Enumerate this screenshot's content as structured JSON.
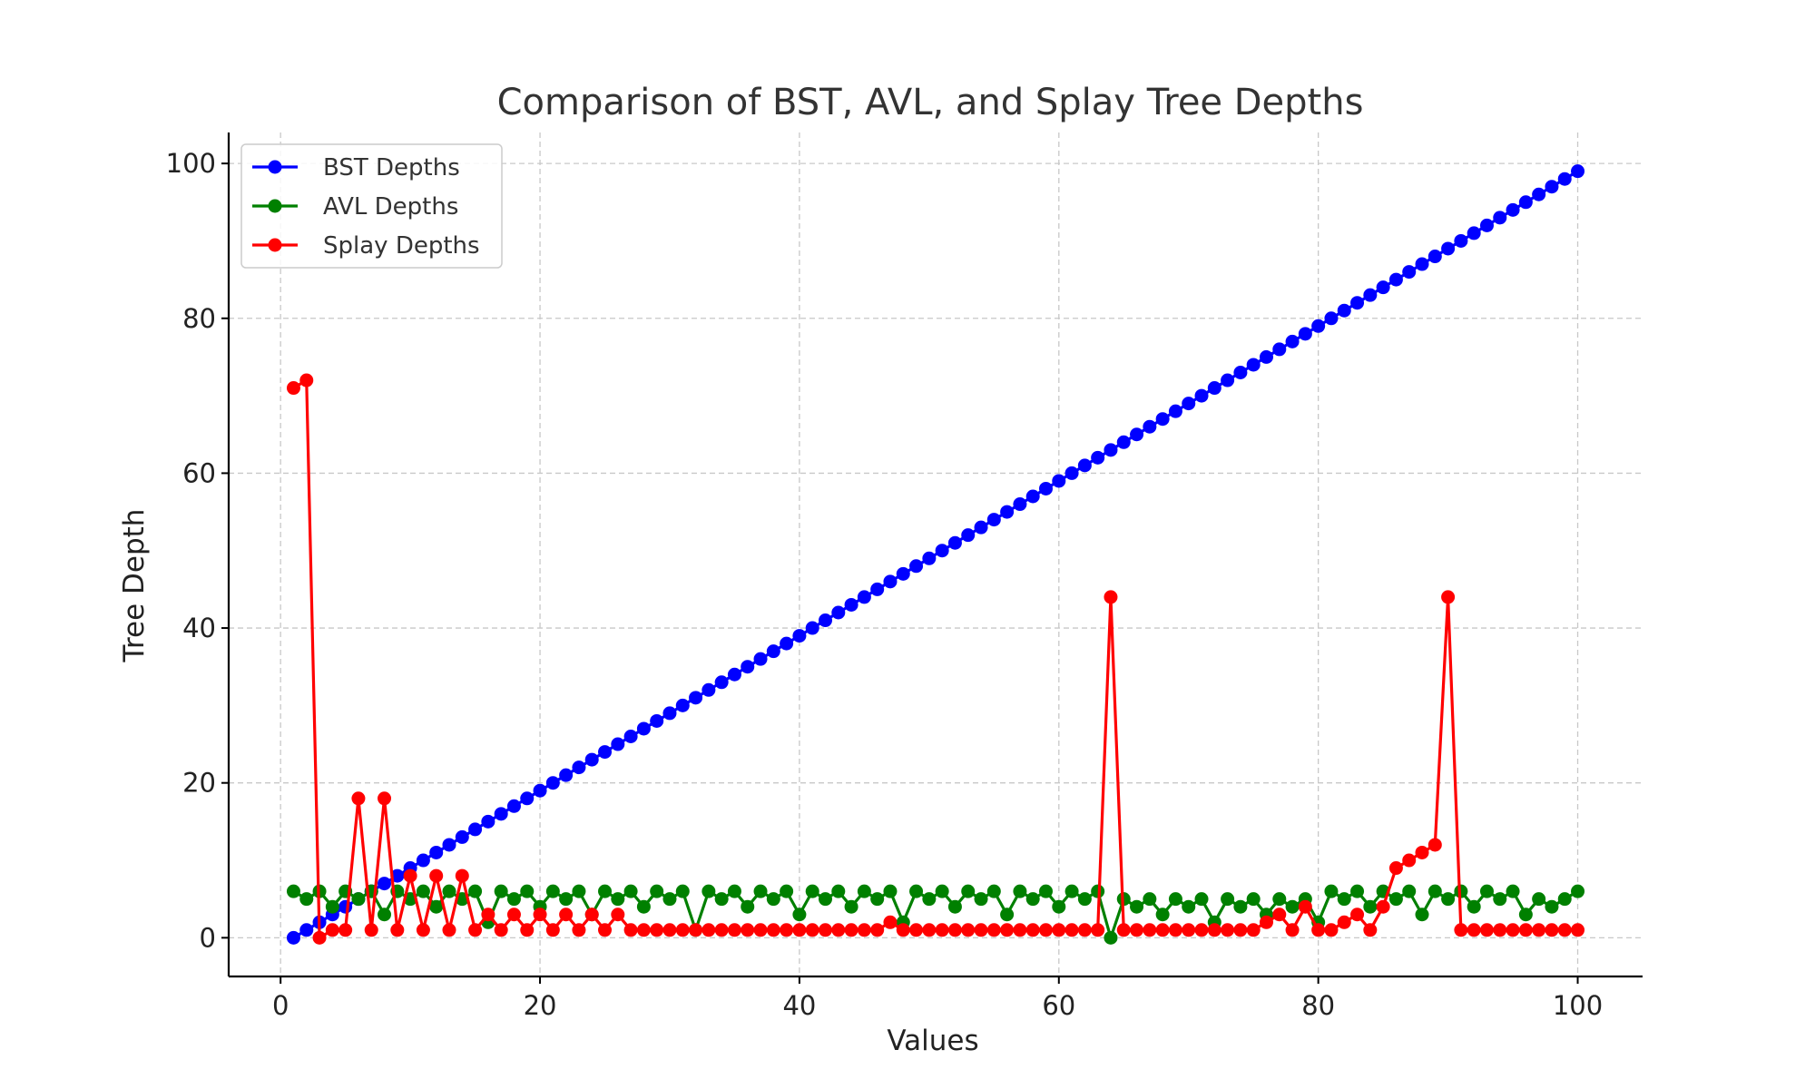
{
  "chart_data": {
    "type": "line",
    "title": "Comparison of BST, AVL, and Splay Tree Depths",
    "xlabel": "Values",
    "ylabel": "Tree Depth",
    "xlim": [
      -4,
      105
    ],
    "ylim": [
      -5,
      104
    ],
    "xticks": [
      0,
      20,
      40,
      60,
      80,
      100
    ],
    "yticks": [
      0,
      20,
      40,
      60,
      80,
      100
    ],
    "grid": true,
    "legend": "top-left",
    "x": [
      1,
      2,
      3,
      4,
      5,
      6,
      7,
      8,
      9,
      10,
      11,
      12,
      13,
      14,
      15,
      16,
      17,
      18,
      19,
      20,
      21,
      22,
      23,
      24,
      25,
      26,
      27,
      28,
      29,
      30,
      31,
      32,
      33,
      34,
      35,
      36,
      37,
      38,
      39,
      40,
      41,
      42,
      43,
      44,
      45,
      46,
      47,
      48,
      49,
      50,
      51,
      52,
      53,
      54,
      55,
      56,
      57,
      58,
      59,
      60,
      61,
      62,
      63,
      64,
      65,
      66,
      67,
      68,
      69,
      70,
      71,
      72,
      73,
      74,
      75,
      76,
      77,
      78,
      79,
      80,
      81,
      82,
      83,
      84,
      85,
      86,
      87,
      88,
      89,
      90,
      91,
      92,
      93,
      94,
      95,
      96,
      97,
      98,
      99,
      100
    ],
    "series": [
      {
        "name": "BST Depths",
        "color": "#0000ff",
        "values": [
          0,
          1,
          2,
          3,
          4,
          5,
          6,
          7,
          8,
          9,
          10,
          11,
          12,
          13,
          14,
          15,
          16,
          17,
          18,
          19,
          20,
          21,
          22,
          23,
          24,
          25,
          26,
          27,
          28,
          29,
          30,
          31,
          32,
          33,
          34,
          35,
          36,
          37,
          38,
          39,
          40,
          41,
          42,
          43,
          44,
          45,
          46,
          47,
          48,
          49,
          50,
          51,
          52,
          53,
          54,
          55,
          56,
          57,
          58,
          59,
          60,
          61,
          62,
          63,
          64,
          65,
          66,
          67,
          68,
          69,
          70,
          71,
          72,
          73,
          74,
          75,
          76,
          77,
          78,
          79,
          80,
          81,
          82,
          83,
          84,
          85,
          86,
          87,
          88,
          89,
          90,
          91,
          92,
          93,
          94,
          95,
          96,
          97,
          98,
          99
        ]
      },
      {
        "name": "AVL Depths",
        "color": "#008000",
        "values": [
          6,
          5,
          6,
          4,
          6,
          5,
          6,
          3,
          6,
          5,
          6,
          4,
          6,
          5,
          6,
          2,
          6,
          5,
          6,
          4,
          6,
          5,
          6,
          3,
          6,
          5,
          6,
          4,
          6,
          5,
          6,
          1,
          6,
          5,
          6,
          4,
          6,
          5,
          6,
          3,
          6,
          5,
          6,
          4,
          6,
          5,
          6,
          2,
          6,
          5,
          6,
          4,
          6,
          5,
          6,
          3,
          6,
          5,
          6,
          4,
          6,
          5,
          6,
          0,
          5,
          4,
          5,
          3,
          5,
          4,
          5,
          2,
          5,
          4,
          5,
          3,
          5,
          4,
          5,
          2,
          6,
          5,
          6,
          4,
          6,
          5,
          6,
          3,
          6,
          5,
          6,
          4,
          6,
          5,
          6,
          3,
          5,
          4,
          5,
          6
        ]
      },
      {
        "name": "Splay Depths",
        "color": "#ff0000",
        "values": [
          71,
          72,
          0,
          1,
          1,
          18,
          1,
          18,
          1,
          8,
          1,
          8,
          1,
          8,
          1,
          3,
          1,
          3,
          1,
          3,
          1,
          3,
          1,
          3,
          1,
          3,
          1,
          1,
          1,
          1,
          1,
          1,
          1,
          1,
          1,
          1,
          1,
          1,
          1,
          1,
          1,
          1,
          1,
          1,
          1,
          1,
          2,
          1,
          1,
          1,
          1,
          1,
          1,
          1,
          1,
          1,
          1,
          1,
          1,
          1,
          1,
          1,
          1,
          44,
          1,
          1,
          1,
          1,
          1,
          1,
          1,
          1,
          1,
          1,
          1,
          2,
          3,
          1,
          4,
          1,
          1,
          2,
          3,
          1,
          4,
          9,
          10,
          11,
          12,
          44,
          1,
          1,
          1,
          1,
          1,
          1,
          1,
          1,
          1,
          1
        ]
      }
    ]
  }
}
